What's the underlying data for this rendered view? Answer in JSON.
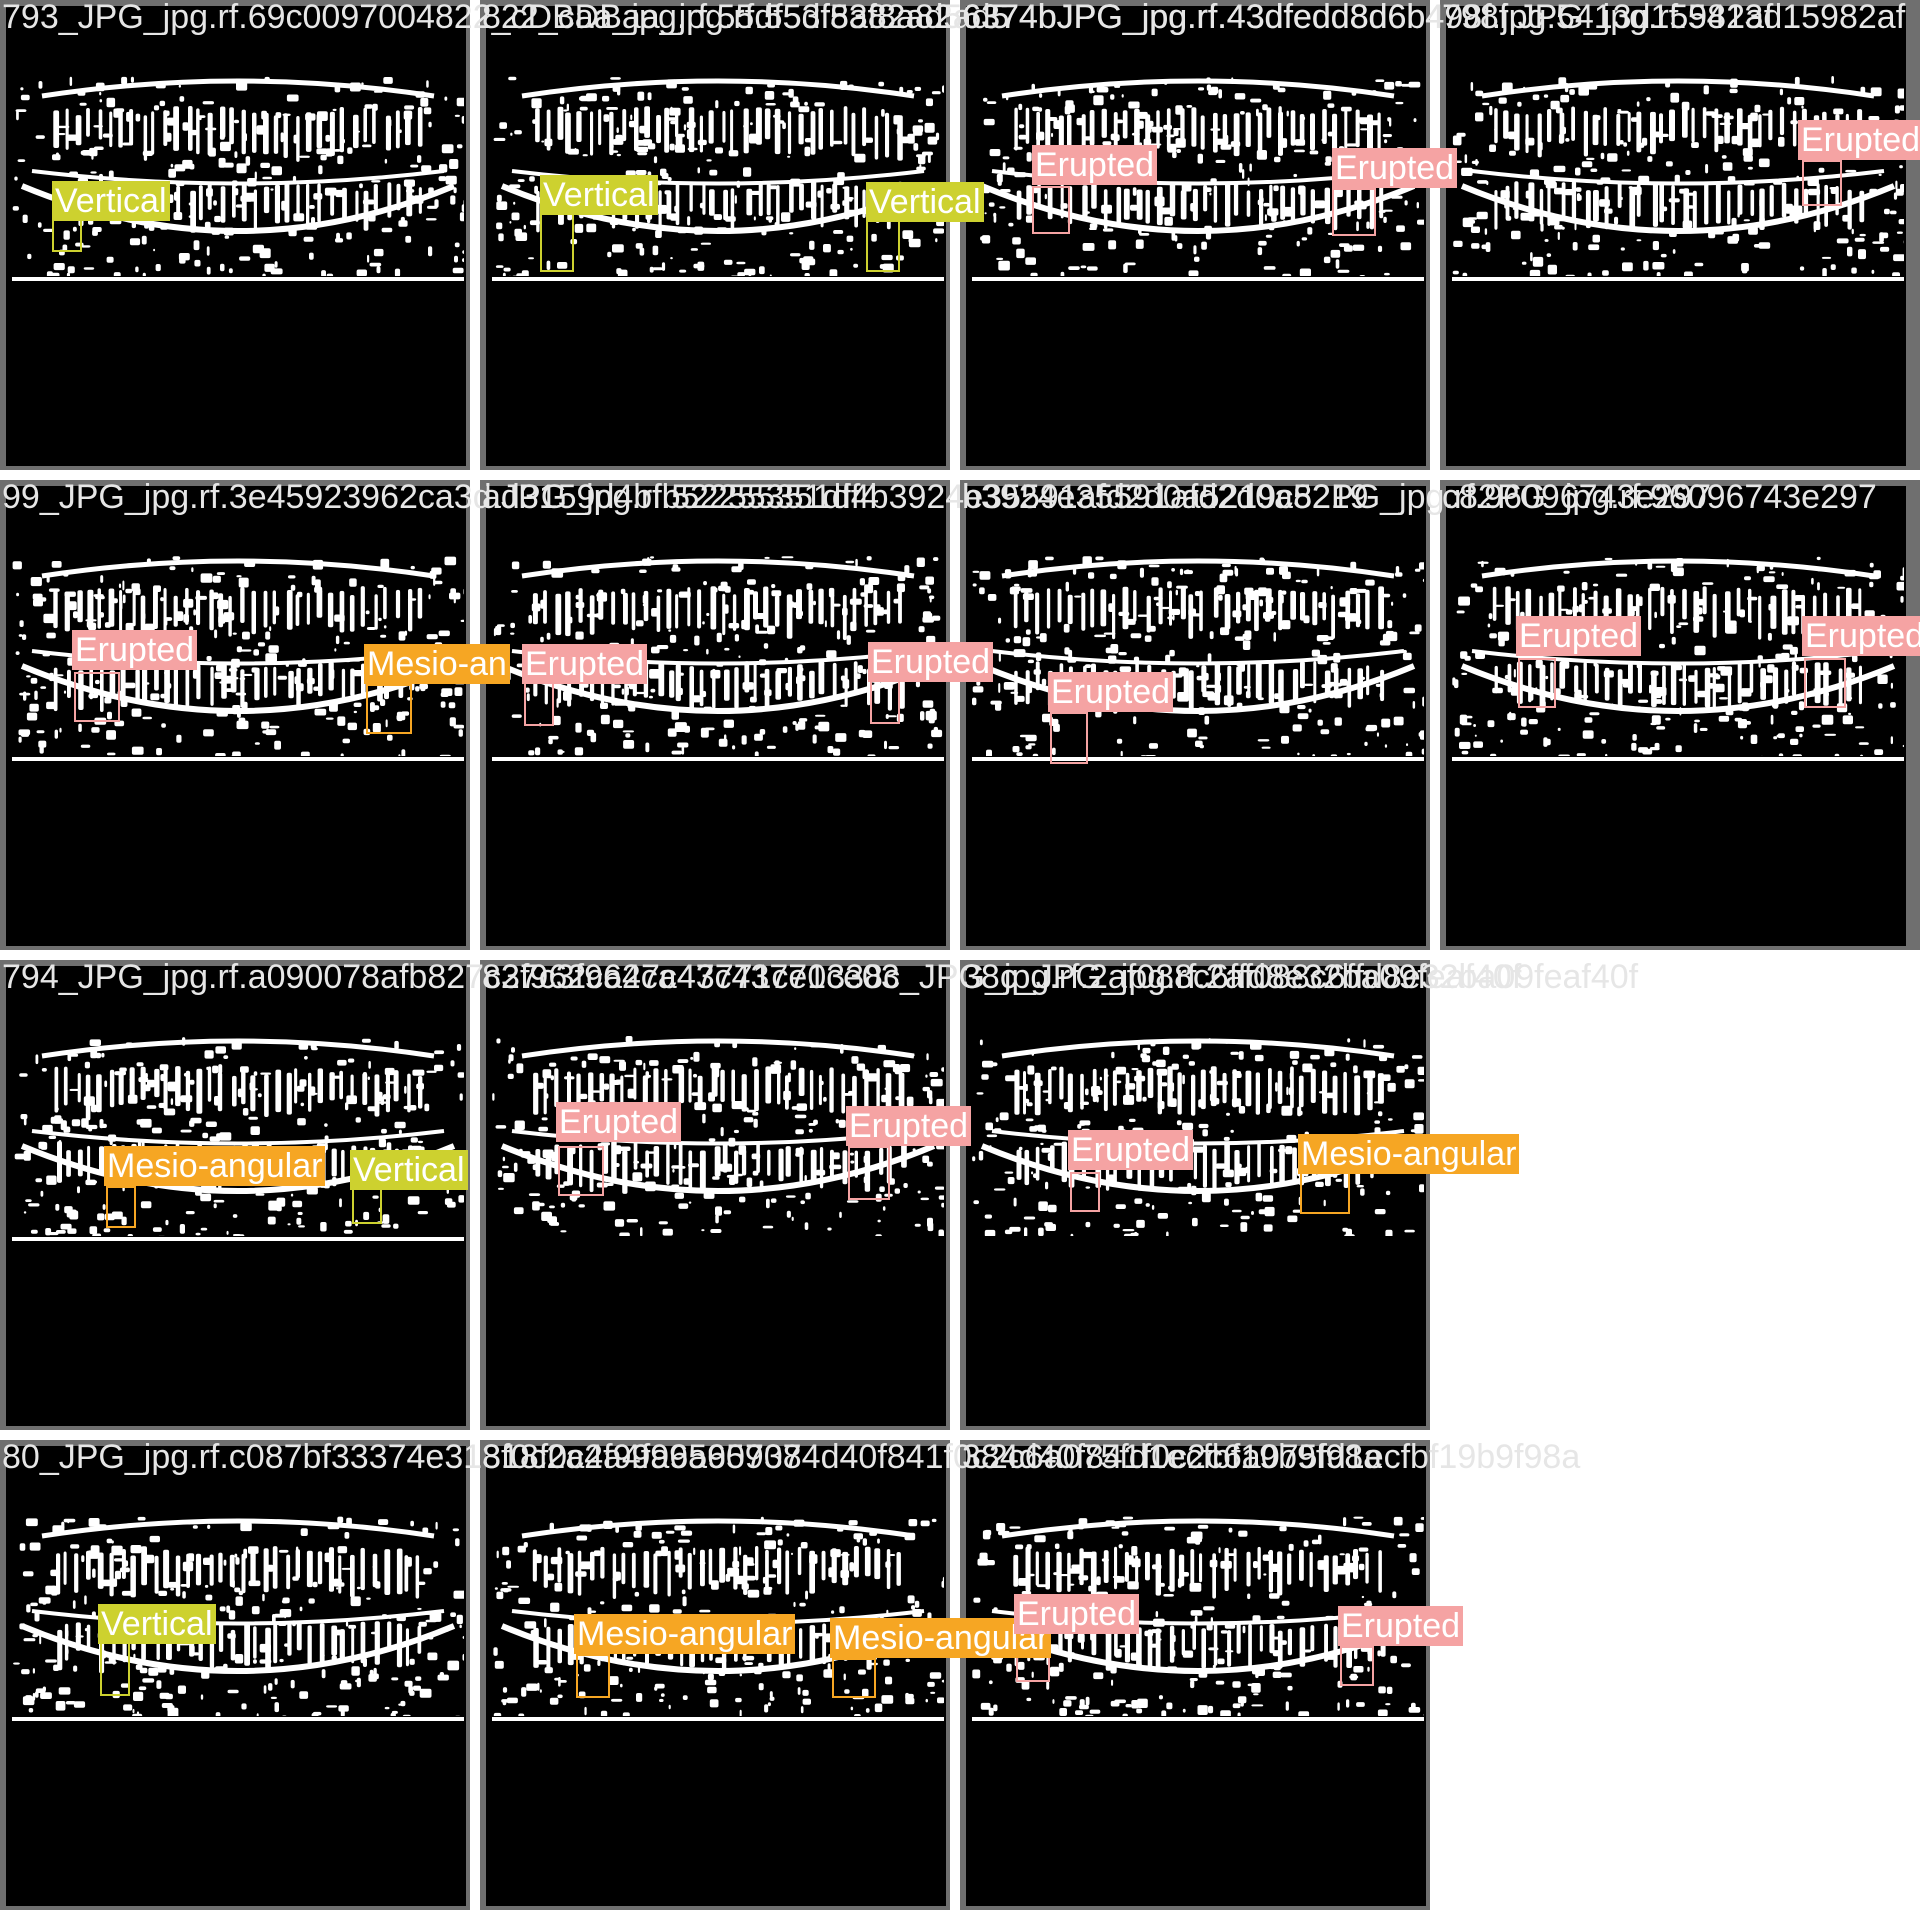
{
  "colors": {
    "background": "#ffffff",
    "tile_border": "#6f6f6f",
    "Vertical": "#cdd12f",
    "Erupted": "#f5a3a3",
    "Mesio-angular": "#f6a623"
  },
  "tiles": [
    {
      "title": "793_JPG_jpg.rf.69c0097004822_cDBaa_jpg.rf.55df53f8a82ad56374bJPG_jpg.rf.43dfedd8d6b498f.jpg.5413d15982af",
      "labels": [
        {
          "class": "Vertical",
          "text": "Vertical"
        }
      ]
    },
    {
      "title": "822_cDBaa_jpg.rf.55df53f8a82ad5",
      "labels": [
        {
          "class": "Vertical",
          "text": "Vertical"
        },
        {
          "class": "Vertical",
          "text": "Vertical"
        }
      ]
    },
    {
      "title": "6374bJPG_jpg.rf.43dfedd8d6b4",
      "labels": [
        {
          "class": "Erupted",
          "text": "Erupted"
        },
        {
          "class": "Erupted",
          "text": "Erupted"
        }
      ]
    },
    {
      "title": "798f.JPG_jpg.rf.5413d15982af",
      "labels": [
        {
          "class": "Erupted",
          "text": "Erupted"
        }
      ]
    },
    {
      "title": "99_JPG_jpg.rf.3e45923962ca3d.JPG_jpg.rf.52255351df4b3924e35591afd2d0a5219c82PG_jpg.rf.96096743e297",
      "labels": [
        {
          "class": "Erupted",
          "text": "Erupted"
        },
        {
          "class": "Mesio-angular",
          "text": "Mesio-an"
        }
      ]
    },
    {
      "title": "ad3159d4bfb52255351df4",
      "labels": [
        {
          "class": "Erupted",
          "text": "Erupted"
        },
        {
          "class": "Erupted",
          "text": "Erupted"
        }
      ]
    },
    {
      "title": "b3924e35591afd2d0a5219",
      "labels": [
        {
          "class": "Erupted",
          "text": "Erupted"
        }
      ]
    },
    {
      "title": "c82PG_jpg.rf.96096743e297",
      "labels": [
        {
          "class": "Erupted",
          "text": "Erupted"
        },
        {
          "class": "Erupted",
          "text": "Erupted"
        }
      ]
    },
    {
      "title": "794_JPG_jpg.rf.a090078afb827c3f962ca47c43771ce0338c_JPG_jpg.rf.2af088c6ffd8e32ba09feaf40f",
      "labels": [
        {
          "class": "Mesio-angular",
          "text": "Mesio-angular"
        },
        {
          "class": "Vertical",
          "text": "Vertical"
        }
      ]
    },
    {
      "title": "827c3f962ca47c43771ce03",
      "labels": [
        {
          "class": "Erupted",
          "text": "Erupted"
        },
        {
          "class": "Erupted",
          "text": "Erupted"
        }
      ]
    },
    {
      "title": "38c_JPG_jpg.rf.2af088c6ffd8e32ba09feaf40f",
      "labels": [
        {
          "class": "Erupted",
          "text": "Erupted"
        },
        {
          "class": "Mesio-angular",
          "text": "Mesio-angular"
        }
      ]
    },
    {
      "title": "80_JPG_jpg.rf.c087bf33374e318f0c2a4f99a65907384d40f841f0c2c6a075fd1ecfbf19b9f98a",
      "labels": [
        {
          "class": "Vertical",
          "text": "Vertical"
        }
      ]
    },
    {
      "title": "318f0c2a4f99a65907",
      "labels": [
        {
          "class": "Mesio-angular",
          "text": "Mesio-angular"
        },
        {
          "class": "Mesio-angular",
          "text": "Mesio-angular"
        }
      ]
    },
    {
      "title": "384d40f841f0c2c6a075fd1ecfbf19b9f98a",
      "labels": [
        {
          "class": "Erupted",
          "text": "Erupted"
        },
        {
          "class": "Erupted",
          "text": "Erupted"
        }
      ]
    }
  ]
}
